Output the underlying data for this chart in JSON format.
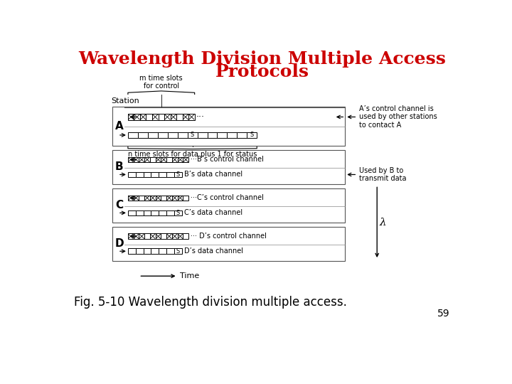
{
  "title_line1": "Wavelength Division Multiple Access",
  "title_line2": "Protocols",
  "title_color": "#cc0000",
  "title_fontsize": 18,
  "fig_caption": "Fig. 5-10 Wavelength division multiple access.",
  "page_number": "59",
  "bg_color": "#ffffff",
  "stations": [
    "A",
    "B",
    "C",
    "D"
  ],
  "station_label": "Station",
  "time_label": "Time",
  "lambda_label": "λ",
  "top_brace_label": "m time slots\nfor control",
  "bottom_brace_label": "n time slots for data plus 1 for status",
  "right_label_A": "A’s control channel is\nused by other stations\nto contact A",
  "right_label_B": "Used by B to\ntransmit data",
  "channel_labels": {
    "B_ctrl": "···B’s control channel",
    "B_data": "B’s data channel",
    "C_ctrl": "···C’s control channel",
    "C_data": "C’s data channel",
    "D_ctrl": "··· D’s control channel",
    "D_data": "D’s data channel"
  }
}
